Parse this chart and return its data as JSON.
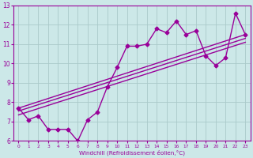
{
  "x_data": [
    0,
    1,
    2,
    3,
    4,
    5,
    6,
    7,
    8,
    9,
    10,
    11,
    12,
    13,
    14,
    15,
    16,
    17,
    18,
    19,
    20,
    21,
    22,
    23
  ],
  "y_main": [
    7.7,
    7.1,
    7.3,
    6.6,
    6.6,
    6.6,
    6.0,
    7.1,
    7.5,
    8.8,
    9.8,
    10.9,
    10.9,
    11.0,
    11.8,
    11.6,
    12.2,
    11.5,
    11.7,
    10.4,
    9.9,
    10.3,
    12.6,
    11.5
  ],
  "trend1_start": 7.55,
  "trend1_end": 11.3,
  "trend2_start": 7.35,
  "trend2_end": 11.1,
  "trend3_start": 7.7,
  "trend3_end": 11.5,
  "line_color": "#990099",
  "bg_color": "#cce8e8",
  "grid_color": "#aacaca",
  "xlabel": "Windchill (Refroidissement éolien,°C)",
  "xlim": [
    -0.5,
    23.5
  ],
  "ylim": [
    6,
    13
  ],
  "yticks": [
    6,
    7,
    8,
    9,
    10,
    11,
    12,
    13
  ],
  "xticks": [
    0,
    1,
    2,
    3,
    4,
    5,
    6,
    7,
    8,
    9,
    10,
    11,
    12,
    13,
    14,
    15,
    16,
    17,
    18,
    19,
    20,
    21,
    22,
    23
  ],
  "marker": "D",
  "markersize": 2.5,
  "linewidth": 1.0
}
